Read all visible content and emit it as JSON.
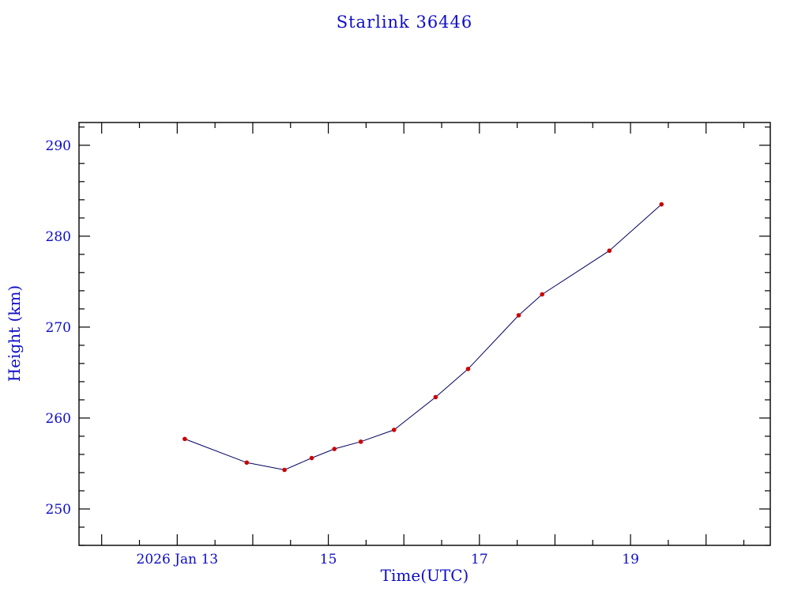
{
  "page": {
    "title": "Starlink 36446"
  },
  "colors": {
    "text": "#0d0dc8",
    "axis": "#000000",
    "line": "#000060",
    "marker": "#cc0000",
    "background": "#ffffff"
  },
  "chart_data": {
    "type": "line",
    "title": "Starlink 36446",
    "xlabel": "Time(UTC)",
    "ylabel": "Height (km)",
    "x_unit": "day of 2026 Jan (decimal)",
    "xlim": [
      11.7,
      20.85
    ],
    "ylim": [
      246.0,
      292.5
    ],
    "grid": false,
    "legend": "none",
    "x_ticks": {
      "labeled": [
        {
          "value": 13,
          "label": "2026 Jan 13"
        },
        {
          "value": 15,
          "label": "15"
        },
        {
          "value": 17,
          "label": "17"
        },
        {
          "value": 19,
          "label": "19"
        }
      ],
      "major_step": 1,
      "minor_step": 0.5
    },
    "y_ticks": {
      "labeled": [
        {
          "value": 250,
          "label": "250"
        },
        {
          "value": 260,
          "label": "260"
        },
        {
          "value": 270,
          "label": "270"
        },
        {
          "value": 280,
          "label": "280"
        },
        {
          "value": 290,
          "label": "290"
        }
      ],
      "major_step": 10,
      "minor_step": 2
    },
    "series": [
      {
        "name": "height",
        "marker": "dot",
        "x": [
          13.1,
          13.92,
          14.42,
          14.78,
          15.08,
          15.43,
          15.87,
          16.42,
          16.85,
          17.52,
          17.83,
          18.72,
          19.41
        ],
        "y": [
          257.7,
          255.1,
          254.3,
          255.6,
          256.6,
          257.4,
          258.7,
          262.3,
          265.4,
          271.3,
          273.6,
          278.4,
          283.5
        ]
      }
    ]
  }
}
